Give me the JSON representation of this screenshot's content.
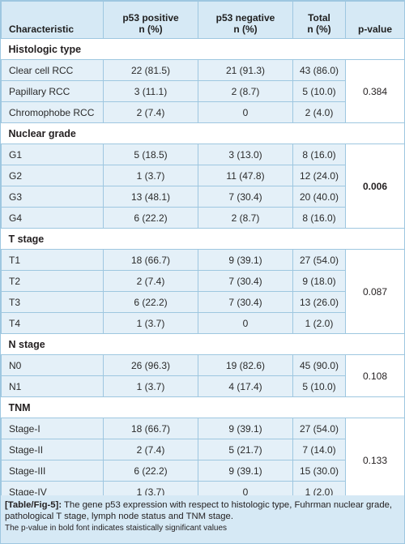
{
  "header": {
    "characteristic": "Characteristic",
    "positive": [
      "p53 positive",
      "n (%)"
    ],
    "negative": [
      "p53 negative",
      "n (%)"
    ],
    "total": [
      "Total",
      "n (%)"
    ],
    "pvalue": "p-value"
  },
  "sections": [
    {
      "title": "Histologic type",
      "p_value": "0.384",
      "significant": false,
      "rows": [
        {
          "label": "Clear cell RCC",
          "positive": "22 (81.5)",
          "negative": "21 (91.3)",
          "total": "43 (86.0)"
        },
        {
          "label": "Papillary RCC",
          "positive": "3 (11.1)",
          "negative": "2 (8.7)",
          "total": "5 (10.0)"
        },
        {
          "label": "Chromophobe RCC",
          "positive": "2 (7.4)",
          "negative": "0",
          "total": "2 (4.0)"
        }
      ]
    },
    {
      "title": "Nuclear grade",
      "p_value": "0.006",
      "significant": true,
      "rows": [
        {
          "label": "G1",
          "positive": "5 (18.5)",
          "negative": "3 (13.0)",
          "total": "8 (16.0)"
        },
        {
          "label": "G2",
          "positive": "1 (3.7)",
          "negative": "11 (47.8)",
          "total": "12 (24.0)"
        },
        {
          "label": "G3",
          "positive": "13 (48.1)",
          "negative": "7 (30.4)",
          "total": "20 (40.0)"
        },
        {
          "label": "G4",
          "positive": "6 (22.2)",
          "negative": "2 (8.7)",
          "total": "8 (16.0)"
        }
      ]
    },
    {
      "title": "T stage",
      "p_value": "0.087",
      "significant": false,
      "rows": [
        {
          "label": "T1",
          "positive": "18 (66.7)",
          "negative": "9 (39.1)",
          "total": "27 (54.0)"
        },
        {
          "label": "T2",
          "positive": "2 (7.4)",
          "negative": "7 (30.4)",
          "total": "9 (18.0)"
        },
        {
          "label": "T3",
          "positive": "6 (22.2)",
          "negative": "7 (30.4)",
          "total": "13 (26.0)"
        },
        {
          "label": "T4",
          "positive": "1 (3.7)",
          "negative": "0",
          "total": "1 (2.0)"
        }
      ]
    },
    {
      "title": "N stage",
      "p_value": "0.108",
      "significant": false,
      "rows": [
        {
          "label": "N0",
          "positive": "26 (96.3)",
          "negative": "19 (82.6)",
          "total": "45 (90.0)"
        },
        {
          "label": "N1",
          "positive": "1 (3.7)",
          "negative": "4 (17.4)",
          "total": "5 (10.0)"
        }
      ]
    },
    {
      "title": "TNM",
      "p_value": "0.133",
      "significant": false,
      "rows": [
        {
          "label": "Stage-I",
          "positive": "18 (66.7)",
          "negative": "9 (39.1)",
          "total": "27 (54.0)"
        },
        {
          "label": "Stage-II",
          "positive": "2 (7.4)",
          "negative": "5 (21.7)",
          "total": "7 (14.0)"
        },
        {
          "label": "Stage-III",
          "positive": "6 (22.2)",
          "negative": "9 (39.1)",
          "total": "15 (30.0)"
        },
        {
          "label": "Stage-IV",
          "positive": "1 (3.7)",
          "negative": "0",
          "total": "1 (2.0)"
        }
      ]
    }
  ],
  "caption": {
    "tag": "[Table/Fig-5]:",
    "text": " The gene p53 expression with respect to histologic type, Fuhrman nuclear grade, pathological T stage, lymph node status and TNM stage.",
    "note": "The p-value in bold font indicates staistically significant values"
  }
}
